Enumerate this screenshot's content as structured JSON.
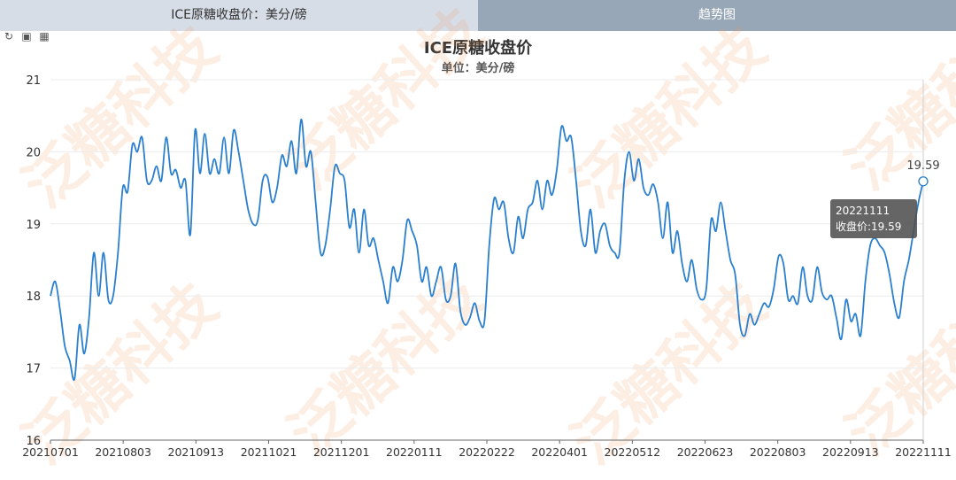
{
  "tabs": [
    {
      "label": "ICE原糖收盘价：美分/磅",
      "active": true
    },
    {
      "label": "趋势图",
      "active": false
    }
  ],
  "toolbox": [
    "refresh-icon",
    "fullscreen-icon",
    "table-icon"
  ],
  "watermark": "泛糖科技",
  "tooltip": {
    "date": "20221111",
    "text": "收盘价:19.59"
  },
  "colors": {
    "line": "#2a7fcf",
    "tab_left": "#d6dde7",
    "tab_right": "#97a7b7"
  },
  "chart_data": {
    "type": "line",
    "title": "ICE原糖收盘价",
    "subtitle": "单位：美分/磅",
    "ylim": [
      16,
      21
    ],
    "yticks": [
      16,
      17,
      18,
      19,
      20,
      21
    ],
    "xticks": [
      "20210701",
      "20210803",
      "20210913",
      "20211021",
      "20211201",
      "20220111",
      "20220222",
      "20220401",
      "20220512",
      "20220623",
      "20220803",
      "20220913",
      "20221111"
    ],
    "grid": true,
    "last_label": "19.59",
    "series": [
      {
        "values": [
          18.0,
          18.2,
          17.8,
          17.3,
          17.1,
          16.85,
          17.6,
          17.2,
          17.7,
          18.6,
          18.0,
          18.6,
          17.95,
          18.0,
          18.6,
          19.5,
          19.45,
          20.1,
          20.0,
          20.2,
          19.6,
          19.6,
          19.8,
          19.6,
          20.2,
          19.7,
          19.75,
          19.5,
          19.6,
          18.85,
          20.3,
          19.7,
          20.25,
          19.7,
          19.9,
          19.7,
          20.2,
          19.7,
          20.3,
          20.0,
          19.6,
          19.2,
          19.0,
          19.05,
          19.6,
          19.65,
          19.3,
          19.5,
          19.95,
          19.8,
          20.15,
          19.7,
          20.45,
          19.8,
          20.0,
          19.3,
          18.6,
          18.7,
          19.2,
          19.8,
          19.7,
          19.6,
          18.95,
          19.2,
          18.6,
          19.2,
          18.7,
          18.8,
          18.5,
          18.2,
          17.9,
          18.4,
          18.2,
          18.5,
          19.05,
          18.9,
          18.7,
          18.2,
          18.4,
          18.0,
          18.2,
          18.4,
          17.95,
          18.0,
          18.45,
          17.8,
          17.6,
          17.7,
          17.9,
          17.65,
          17.65,
          18.7,
          19.35,
          19.2,
          19.3,
          18.8,
          18.6,
          19.1,
          18.8,
          19.2,
          19.3,
          19.6,
          19.2,
          19.6,
          19.4,
          19.75,
          20.35,
          20.15,
          20.2,
          19.6,
          18.9,
          18.7,
          19.2,
          18.6,
          18.9,
          19.0,
          18.7,
          18.6,
          18.6,
          19.6,
          20.0,
          19.6,
          19.9,
          19.5,
          19.4,
          19.55,
          19.3,
          18.8,
          19.3,
          18.6,
          18.9,
          18.45,
          18.2,
          18.5,
          18.1,
          17.95,
          18.1,
          19.05,
          18.9,
          19.3,
          18.9,
          18.5,
          18.3,
          17.6,
          17.45,
          17.75,
          17.6,
          17.75,
          17.9,
          17.85,
          18.1,
          18.55,
          18.45,
          17.95,
          18.0,
          17.9,
          18.4,
          18.0,
          17.95,
          18.4,
          18.05,
          17.95,
          18.0,
          17.7,
          17.4,
          17.95,
          17.65,
          17.75,
          17.45,
          18.2,
          18.7,
          18.8,
          18.7,
          18.6,
          18.3,
          17.9,
          17.7,
          18.2,
          18.5,
          18.9,
          19.3,
          19.59
        ]
      }
    ]
  }
}
